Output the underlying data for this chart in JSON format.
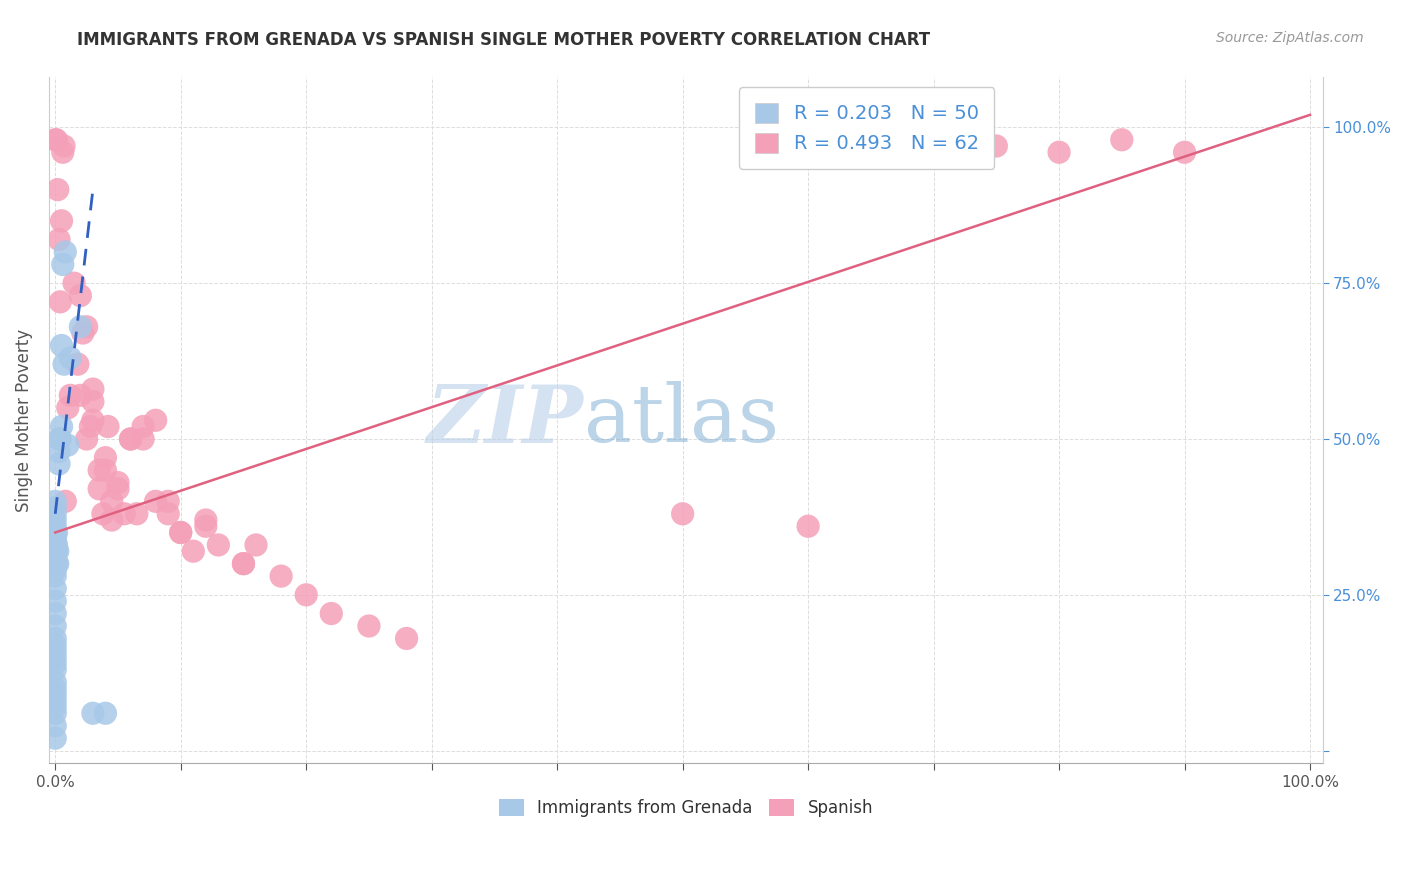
{
  "title": "IMMIGRANTS FROM GRENADA VS SPANISH SINGLE MOTHER POVERTY CORRELATION CHART",
  "source": "Source: ZipAtlas.com",
  "ylabel": "Single Mother Poverty",
  "y_ticks": [
    0.0,
    0.25,
    0.5,
    0.75,
    1.0
  ],
  "y_tick_labels_right": [
    "",
    "25.0%",
    "50.0%",
    "75.0%",
    "100.0%"
  ],
  "blue_R": 0.203,
  "blue_N": 50,
  "pink_R": 0.493,
  "pink_N": 62,
  "blue_color": "#a8c8e8",
  "pink_color": "#f4a0b8",
  "blue_line_color": "#3060c0",
  "pink_line_color": "#e06080",
  "legend_label_blue": "Immigrants from Grenada",
  "legend_label_pink": "Spanish",
  "blue_scatter_x": [
    0.0,
    0.0,
    0.0,
    0.0,
    0.0,
    0.0,
    0.0,
    0.0,
    0.0,
    0.0,
    0.0,
    0.0,
    0.0,
    0.0,
    0.0,
    0.0,
    0.0,
    0.0,
    0.0,
    0.0,
    0.0,
    0.0,
    0.0,
    0.0,
    0.0,
    0.0,
    0.0,
    0.0,
    0.0,
    0.0,
    0.001,
    0.001,
    0.001,
    0.001,
    0.002,
    0.002,
    0.003,
    0.003,
    0.003,
    0.004,
    0.005,
    0.005,
    0.006,
    0.007,
    0.008,
    0.01,
    0.012,
    0.02,
    0.03,
    0.04
  ],
  "blue_scatter_y": [
    0.02,
    0.04,
    0.06,
    0.07,
    0.08,
    0.09,
    0.1,
    0.11,
    0.13,
    0.14,
    0.15,
    0.16,
    0.17,
    0.18,
    0.2,
    0.22,
    0.24,
    0.26,
    0.28,
    0.29,
    0.3,
    0.31,
    0.33,
    0.34,
    0.35,
    0.36,
    0.37,
    0.38,
    0.39,
    0.4,
    0.3,
    0.32,
    0.33,
    0.35,
    0.3,
    0.32,
    0.46,
    0.48,
    0.5,
    0.5,
    0.52,
    0.65,
    0.78,
    0.62,
    0.8,
    0.49,
    0.63,
    0.68,
    0.06,
    0.06
  ],
  "pink_scatter_x": [
    0.0,
    0.001,
    0.002,
    0.003,
    0.004,
    0.005,
    0.006,
    0.007,
    0.008,
    0.01,
    0.012,
    0.015,
    0.018,
    0.02,
    0.022,
    0.025,
    0.028,
    0.03,
    0.03,
    0.035,
    0.038,
    0.04,
    0.042,
    0.045,
    0.05,
    0.055,
    0.06,
    0.065,
    0.07,
    0.08,
    0.09,
    0.1,
    0.11,
    0.12,
    0.13,
    0.15,
    0.16,
    0.18,
    0.2,
    0.22,
    0.25,
    0.28,
    0.02,
    0.025,
    0.03,
    0.035,
    0.04,
    0.045,
    0.05,
    0.06,
    0.07,
    0.08,
    0.09,
    0.1,
    0.12,
    0.15,
    0.5,
    0.6,
    0.75,
    0.8,
    0.85,
    0.9
  ],
  "pink_scatter_y": [
    0.98,
    0.98,
    0.9,
    0.82,
    0.72,
    0.85,
    0.96,
    0.97,
    0.4,
    0.55,
    0.57,
    0.75,
    0.62,
    0.57,
    0.67,
    0.5,
    0.52,
    0.53,
    0.56,
    0.45,
    0.38,
    0.47,
    0.52,
    0.37,
    0.43,
    0.38,
    0.5,
    0.38,
    0.5,
    0.4,
    0.38,
    0.35,
    0.32,
    0.37,
    0.33,
    0.3,
    0.33,
    0.28,
    0.25,
    0.22,
    0.2,
    0.18,
    0.73,
    0.68,
    0.58,
    0.42,
    0.45,
    0.4,
    0.42,
    0.5,
    0.52,
    0.53,
    0.4,
    0.35,
    0.36,
    0.3,
    0.38,
    0.36,
    0.97,
    0.96,
    0.98,
    0.96
  ],
  "blue_line_x": [
    0.0,
    0.03
  ],
  "blue_line_y": [
    0.38,
    0.9
  ],
  "pink_line_x": [
    0.0,
    1.0
  ],
  "pink_line_y": [
    0.35,
    1.02
  ],
  "xlim": [
    -0.005,
    1.01
  ],
  "ylim": [
    -0.02,
    1.08
  ],
  "watermark_zip": "ZIP",
  "watermark_atlas": "atlas",
  "background_color": "#ffffff",
  "grid_color": "#dddddd",
  "title_fontsize": 12,
  "source_fontsize": 10,
  "tick_label_color_y": "#4a90d9",
  "tick_label_color_x": "#333333"
}
